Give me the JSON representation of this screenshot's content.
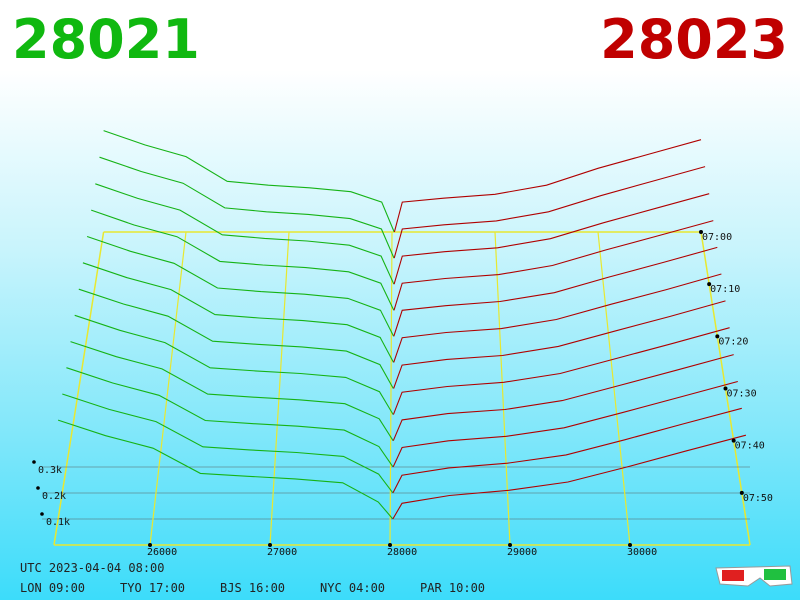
{
  "chart_data": {
    "type": "depth3d",
    "bid": 28021,
    "ask": 28023,
    "bid_color": "#16b316",
    "ask_color": "#b00000",
    "floor_color": "#e8e830",
    "xlim": [
      25200,
      31000
    ],
    "xticks": [
      26000,
      27000,
      28000,
      29000,
      30000
    ],
    "tlim": [
      420,
      480
    ],
    "tticks": [
      {
        "value": 420,
        "label": "07:00"
      },
      {
        "value": 430,
        "label": "07:10"
      },
      {
        "value": 440,
        "label": "07:20"
      },
      {
        "value": 450,
        "label": "07:30"
      },
      {
        "value": 460,
        "label": "07:40"
      },
      {
        "value": 470,
        "label": "07:50"
      }
    ],
    "dticks": [
      {
        "value": 100,
        "label": "0.1k"
      },
      {
        "value": 200,
        "label": "0.2k"
      },
      {
        "value": 300,
        "label": "0.3k"
      }
    ],
    "bid_prices": [
      25200,
      25600,
      26000,
      26400,
      26800,
      27200,
      27600,
      27900,
      28021
    ],
    "ask_prices": [
      28023,
      28100,
      28500,
      29000,
      29500,
      30000,
      30500,
      31000
    ],
    "slices": [
      {
        "time": 420,
        "bids": [
          390,
          335,
          290,
          195,
          180,
          170,
          155,
          115,
          0
        ],
        "asks": [
          0,
          115,
          130,
          145,
          180,
          245,
          300,
          355
        ]
      },
      {
        "time": 425,
        "bids": [
          388,
          333,
          288,
          193,
          178,
          168,
          152,
          112,
          0
        ],
        "asks": [
          0,
          112,
          128,
          143,
          178,
          240,
          296,
          352
        ]
      },
      {
        "time": 430,
        "bids": [
          386,
          330,
          285,
          190,
          176,
          166,
          150,
          108,
          0
        ],
        "asks": [
          0,
          108,
          125,
          140,
          175,
          236,
          292,
          348
        ]
      },
      {
        "time": 435,
        "bids": [
          385,
          328,
          283,
          188,
          174,
          164,
          148,
          104,
          0
        ],
        "asks": [
          0,
          104,
          122,
          137,
          172,
          232,
          288,
          345
        ]
      },
      {
        "time": 440,
        "bids": [
          384,
          327,
          281,
          186,
          172,
          162,
          146,
          100,
          0
        ],
        "asks": [
          0,
          100,
          118,
          134,
          168,
          228,
          284,
          342
        ]
      },
      {
        "time": 445,
        "bids": [
          383,
          326,
          280,
          184,
          171,
          161,
          145,
          96,
          0
        ],
        "asks": [
          0,
          95,
          115,
          130,
          165,
          224,
          280,
          340
        ]
      },
      {
        "time": 450,
        "bids": [
          382,
          325,
          278,
          182,
          170,
          160,
          144,
          92,
          0
        ],
        "asks": [
          0,
          90,
          112,
          127,
          162,
          220,
          277,
          337
        ]
      },
      {
        "time": 455,
        "bids": [
          382,
          324,
          277,
          180,
          168,
          158,
          143,
          88,
          0
        ],
        "asks": [
          0,
          86,
          108,
          124,
          158,
          216,
          274,
          334
        ]
      },
      {
        "time": 460,
        "bids": [
          381,
          323,
          276,
          179,
          167,
          157,
          142,
          84,
          0
        ],
        "asks": [
          0,
          80,
          104,
          120,
          154,
          212,
          271,
          331
        ]
      },
      {
        "time": 465,
        "bids": [
          381,
          322,
          275,
          178,
          166,
          156,
          141,
          78,
          0
        ],
        "asks": [
          0,
          74,
          100,
          117,
          150,
          208,
          268,
          328
        ]
      },
      {
        "time": 470,
        "bids": [
          380,
          321,
          274,
          177,
          165,
          155,
          140,
          72,
          0
        ],
        "asks": [
          0,
          68,
          96,
          114,
          146,
          204,
          265,
          325
        ]
      },
      {
        "time": 475,
        "bids": [
          380,
          320,
          272,
          175,
          164,
          154,
          139,
          65,
          0
        ],
        "asks": [
          0,
          60,
          90,
          110,
          142,
          200,
          262,
          322
        ]
      }
    ],
    "utc": "UTC 2023-04-04 08:00",
    "clocks": [
      "LON 09:00",
      "TYO 17:00",
      "BJS 16:00",
      "NYC 04:00",
      "PAR 10:00"
    ]
  }
}
